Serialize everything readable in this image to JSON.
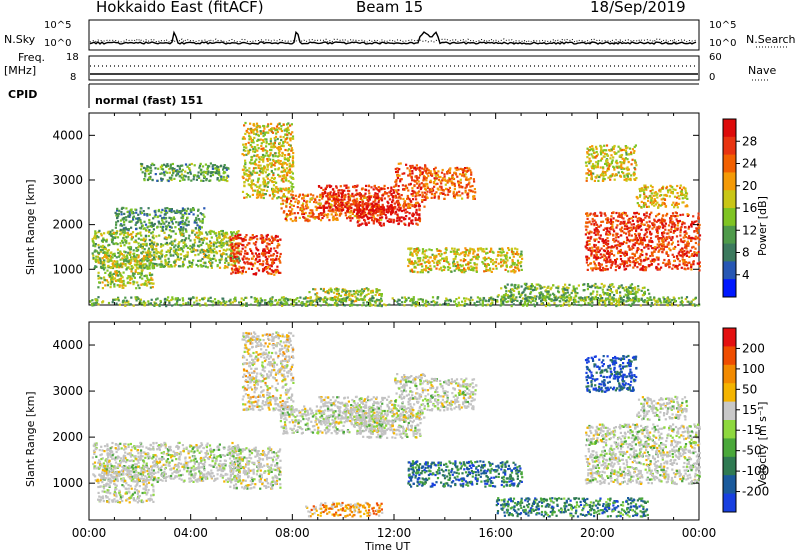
{
  "header": {
    "station": "Hokkaido East (fitACF)",
    "beam": "Beam 15",
    "date": "18/Sep/2019"
  },
  "noise_panel": {
    "left_label": "N.Sky",
    "right_label": "N.Search",
    "ticks": [
      "10^5",
      "10^0"
    ]
  },
  "freq_panel": {
    "left_label_line1": "Freq.",
    "left_label_line2": "[MHz]",
    "left_ticks": [
      "18",
      "8"
    ],
    "right_label": "Nave",
    "right_ticks": [
      "60",
      "0"
    ]
  },
  "cpid": {
    "label": "CPID",
    "value": "normal (fast) 151"
  },
  "colors": {
    "power": [
      "#0018ff",
      "#2757b4",
      "#3c7a5e",
      "#4e9a4a",
      "#7fc423",
      "#c9c616",
      "#f49a06",
      "#f26000",
      "#e83310",
      "#dd0a0a"
    ],
    "velocity": [
      "#1840e0",
      "#1a5a9c",
      "#2f7a52",
      "#4aa83a",
      "#8ed83e",
      "#c8c8c8",
      "#f4b400",
      "#f28a00",
      "#ef4d00",
      "#e41010"
    ],
    "ground_scatter": "#c2c2c2"
  },
  "chart_data": [
    {
      "type": "heatmap",
      "name": "power",
      "xlabel": "Time UT",
      "ylabel": "Slant Range [km]",
      "x_ticks": [
        "00:00",
        "04:00",
        "08:00",
        "12:00",
        "16:00",
        "20:00",
        "00:00"
      ],
      "xlim": [
        0,
        24
      ],
      "ylim": [
        200,
        4500
      ],
      "y_ticks": [
        1000,
        2000,
        3000,
        4000
      ],
      "colorbar": {
        "label": "Power [dB]",
        "ticks": [
          "28",
          "24",
          "20",
          "16",
          "12",
          "8",
          "4"
        ],
        "range": [
          0,
          30
        ]
      },
      "regions": [
        {
          "t0": 0.1,
          "t1": 5.9,
          "r0": 1050,
          "r1": 1900,
          "level": 0.45
        },
        {
          "t0": 0.3,
          "t1": 2.5,
          "r0": 600,
          "r1": 1400,
          "level": 0.5
        },
        {
          "t0": 1.0,
          "t1": 4.5,
          "r0": 1900,
          "r1": 2400,
          "level": 0.3
        },
        {
          "t0": 2.0,
          "t1": 5.5,
          "r0": 3000,
          "r1": 3400,
          "level": 0.35
        },
        {
          "t0": 5.5,
          "t1": 7.5,
          "r0": 900,
          "r1": 1800,
          "level": 0.85
        },
        {
          "t0": 6.0,
          "t1": 8.0,
          "r0": 2600,
          "r1": 4300,
          "level": 0.55
        },
        {
          "t0": 7.5,
          "t1": 11.5,
          "r0": 2100,
          "r1": 2700,
          "level": 0.75
        },
        {
          "t0": 9.0,
          "t1": 12.0,
          "r0": 2300,
          "r1": 2900,
          "level": 0.9
        },
        {
          "t0": 10.5,
          "t1": 13.0,
          "r0": 2000,
          "r1": 2500,
          "level": 0.95
        },
        {
          "t0": 12.0,
          "t1": 13.2,
          "r0": 2400,
          "r1": 3400,
          "level": 0.8
        },
        {
          "t0": 13.2,
          "t1": 15.2,
          "r0": 2600,
          "r1": 3300,
          "level": 0.75
        },
        {
          "t0": 12.5,
          "t1": 17.0,
          "r0": 950,
          "r1": 1500,
          "level": 0.55
        },
        {
          "t0": 8.5,
          "t1": 11.5,
          "r0": 300,
          "r1": 600,
          "level": 0.5
        },
        {
          "t0": 16.0,
          "t1": 22.0,
          "r0": 300,
          "r1": 700,
          "level": 0.4
        },
        {
          "t0": 19.5,
          "t1": 24.0,
          "r0": 1000,
          "r1": 2300,
          "level": 0.85
        },
        {
          "t0": 19.5,
          "t1": 21.5,
          "r0": 3000,
          "r1": 3800,
          "level": 0.55
        },
        {
          "t0": 21.5,
          "t1": 23.5,
          "r0": 2400,
          "r1": 2900,
          "level": 0.6
        },
        {
          "t0": 0.0,
          "t1": 24.0,
          "r0": 200,
          "r1": 400,
          "level": 0.4
        }
      ]
    },
    {
      "type": "heatmap",
      "name": "velocity",
      "xlabel": "Time UT",
      "ylabel": "Slant Range [km]",
      "x_ticks": [
        "00:00",
        "04:00",
        "08:00",
        "12:00",
        "16:00",
        "20:00",
        "00:00"
      ],
      "xlim": [
        0,
        24
      ],
      "ylim": [
        200,
        4500
      ],
      "y_ticks": [
        1000,
        2000,
        3000,
        4000
      ],
      "colorbar": {
        "label": "Velocity [m s⁻¹]",
        "ticks": [
          "200",
          "100",
          "50",
          "15",
          "-15",
          "-50",
          "-100",
          "-200"
        ],
        "range": [
          -250,
          250
        ]
      },
      "regions": [
        {
          "t0": 0.1,
          "t1": 5.9,
          "r0": 1050,
          "r1": 1900,
          "level": 0.5
        },
        {
          "t0": 0.3,
          "t1": 2.5,
          "r0": 600,
          "r1": 1400,
          "level": 0.5
        },
        {
          "t0": 5.5,
          "t1": 7.5,
          "r0": 900,
          "r1": 1800,
          "level": 0.5
        },
        {
          "t0": 6.0,
          "t1": 8.0,
          "r0": 2600,
          "r1": 4300,
          "level": 0.6
        },
        {
          "t0": 7.5,
          "t1": 11.5,
          "r0": 2100,
          "r1": 2700,
          "level": 0.5
        },
        {
          "t0": 9.0,
          "t1": 12.0,
          "r0": 2300,
          "r1": 2900,
          "level": 0.5
        },
        {
          "t0": 10.5,
          "t1": 13.0,
          "r0": 2000,
          "r1": 2500,
          "level": 0.5
        },
        {
          "t0": 12.0,
          "t1": 13.2,
          "r0": 2400,
          "r1": 3400,
          "level": 0.5
        },
        {
          "t0": 13.2,
          "t1": 15.2,
          "r0": 2600,
          "r1": 3300,
          "level": 0.5
        },
        {
          "t0": 12.5,
          "t1": 17.0,
          "r0": 950,
          "r1": 1500,
          "level": 0.2
        },
        {
          "t0": 8.5,
          "t1": 11.5,
          "r0": 300,
          "r1": 600,
          "level": 0.7
        },
        {
          "t0": 16.0,
          "t1": 22.0,
          "r0": 300,
          "r1": 700,
          "level": 0.25
        },
        {
          "t0": 19.5,
          "t1": 24.0,
          "r0": 1000,
          "r1": 2300,
          "level": 0.5
        },
        {
          "t0": 19.5,
          "t1": 21.5,
          "r0": 3000,
          "r1": 3800,
          "level": 0.1
        },
        {
          "t0": 21.5,
          "t1": 23.5,
          "r0": 2400,
          "r1": 2900,
          "level": 0.5
        }
      ]
    }
  ]
}
